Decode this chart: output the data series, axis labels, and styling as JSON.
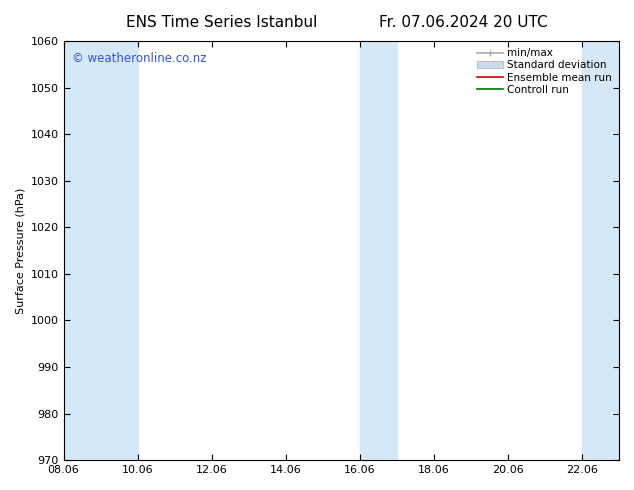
{
  "title_left": "ENS Time Series Istanbul",
  "title_right": "Fr. 07.06.2024 20 UTC",
  "ylabel": "Surface Pressure (hPa)",
  "ylim": [
    970,
    1060
  ],
  "yticks": [
    970,
    980,
    990,
    1000,
    1010,
    1020,
    1030,
    1040,
    1050,
    1060
  ],
  "xlim": [
    0,
    15
  ],
  "xtick_labels": [
    "08.06",
    "10.06",
    "12.06",
    "14.06",
    "16.06",
    "18.06",
    "20.06",
    "22.06"
  ],
  "xtick_positions": [
    0,
    2,
    4,
    6,
    8,
    10,
    12,
    14
  ],
  "watermark": "© weatheronline.co.nz",
  "watermark_color": "#3355cc",
  "bg_color": "#ffffff",
  "plot_bg_color": "#ffffff",
  "shaded_regions": [
    {
      "x_start": 0.0,
      "x_end": 1.0,
      "color": "#d8e8f5"
    },
    {
      "x_start": 1.0,
      "x_end": 2.0,
      "color": "#d8e8f5"
    },
    {
      "x_start": 8.0,
      "x_end": 8.5,
      "color": "#d8e8f5"
    },
    {
      "x_start": 8.5,
      "x_end": 9.0,
      "color": "#d8e8f5"
    },
    {
      "x_start": 14.0,
      "x_end": 14.5,
      "color": "#d8e8f5"
    },
    {
      "x_start": 14.5,
      "x_end": 15.0,
      "color": "#d8e8f5"
    }
  ],
  "legend_items": [
    {
      "label": "min/max",
      "color": "#aaaaaa",
      "lw": 1.2,
      "style": "minmax"
    },
    {
      "label": "Standard deviation",
      "color": "#c8dced",
      "lw": 8,
      "style": "band"
    },
    {
      "label": "Ensemble mean run",
      "color": "#cc0000",
      "lw": 1.2,
      "style": "line"
    },
    {
      "label": "Controll run",
      "color": "#007700",
      "lw": 1.2,
      "style": "line"
    }
  ],
  "font_family": "DejaVu Sans",
  "title_fontsize": 11,
  "axis_fontsize": 8,
  "tick_fontsize": 8,
  "legend_fontsize": 7.5,
  "spine_color": "#000000",
  "tick_color": "#000000",
  "grid_color": "#cccccc"
}
